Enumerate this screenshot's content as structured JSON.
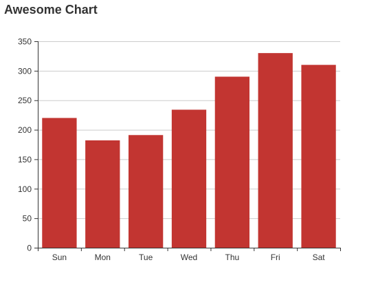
{
  "chart_data": {
    "type": "bar",
    "title": "Awesome Chart",
    "categories": [
      "Sun",
      "Mon",
      "Tue",
      "Wed",
      "Thu",
      "Fri",
      "Sat"
    ],
    "values": [
      220,
      182,
      191,
      234,
      290,
      330,
      310
    ],
    "ylim": [
      0,
      350
    ],
    "yticks": [
      0,
      50,
      100,
      150,
      200,
      250,
      300,
      350
    ],
    "grid": true,
    "colors": {
      "bar": "#c23531",
      "grid": "#cccccc",
      "axis": "#333333"
    }
  }
}
